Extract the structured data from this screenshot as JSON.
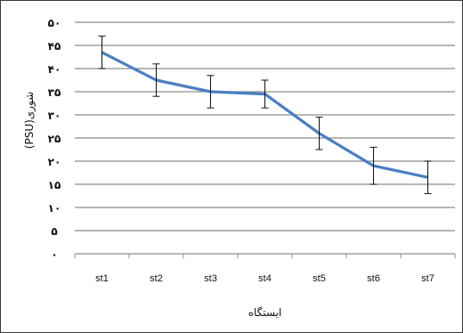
{
  "chart_data": {
    "type": "line",
    "xlabel": "ایستگاه",
    "ylabel": "شوری(PSU)",
    "categories": [
      "st1",
      "st2",
      "st3",
      "st4",
      "st5",
      "st6",
      "st7"
    ],
    "ylim": [
      0,
      50
    ],
    "yticks": [
      0,
      5,
      10,
      15,
      20,
      25,
      30,
      35,
      40,
      45,
      50
    ],
    "ytick_labels": [
      "٠",
      "۵",
      "١٠",
      "١۵",
      "٢٠",
      "٢۵",
      "٣٠",
      "٣۵",
      "۴٠",
      "۴۵",
      "۵٠"
    ],
    "grid": "horizontal",
    "series": [
      {
        "values": [
          43.5,
          37.5,
          35,
          34.5,
          26,
          19,
          16.5
        ],
        "error": [
          3.5,
          3.5,
          3.5,
          3,
          3.5,
          4,
          3.5
        ],
        "color": "#4a7fc1"
      }
    ]
  }
}
